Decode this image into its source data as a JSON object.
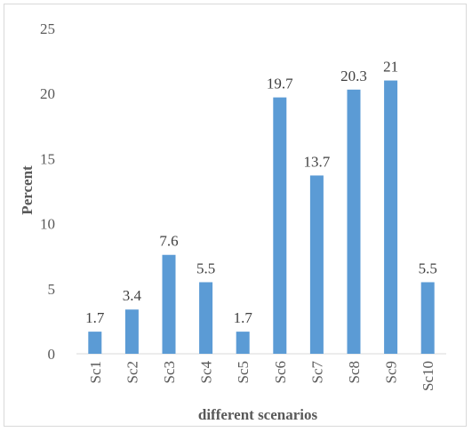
{
  "chart_data": {
    "type": "bar",
    "title": "",
    "xlabel": "different scenarios",
    "ylabel": "Percent",
    "categories": [
      "Sc1",
      "Sc2",
      "Sc3",
      "Sc4",
      "Sc5",
      "Sc6",
      "Sc7",
      "Sc8",
      "Sc9",
      "Sc10"
    ],
    "values": [
      1.7,
      3.4,
      7.6,
      5.5,
      1.7,
      19.7,
      13.7,
      20.3,
      21,
      5.5
    ],
    "data_labels": [
      "1.7",
      "3.4",
      "7.6",
      "5.5",
      "1.7",
      "19.7",
      "13.7",
      "20.3",
      "21",
      "5.5"
    ],
    "ylim": [
      0,
      25
    ],
    "yticks": [
      "0",
      "5",
      "10",
      "15",
      "20",
      "25"
    ],
    "grid": false,
    "legend": "none",
    "bar_color": "#5b9bd5"
  }
}
